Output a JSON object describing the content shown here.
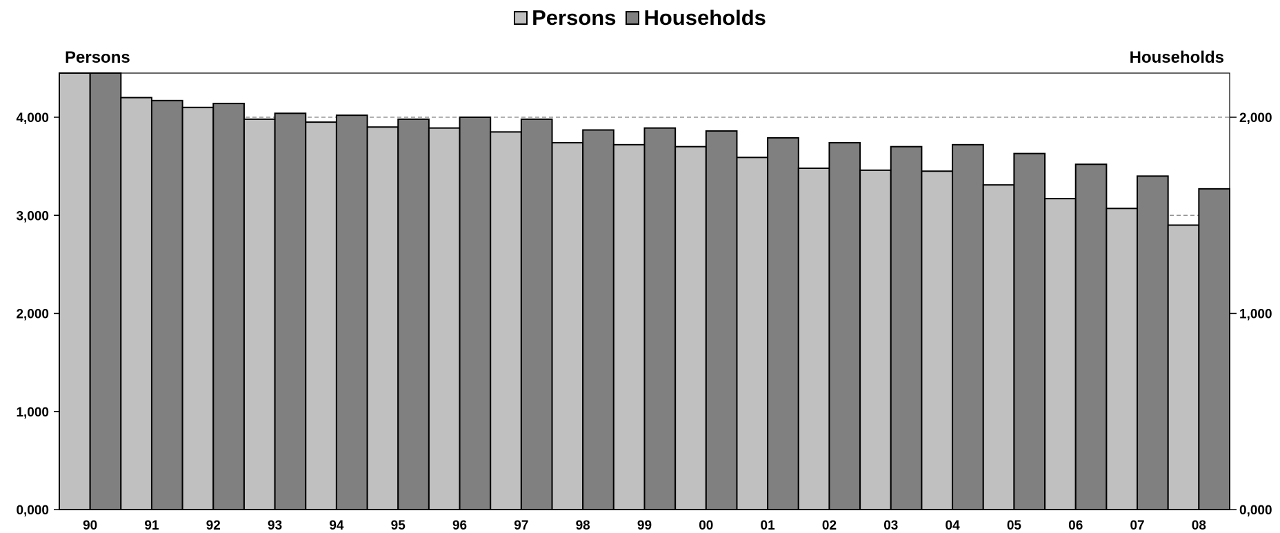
{
  "legend": {
    "persons_label": "Persons",
    "households_label": "Households"
  },
  "chart_data": {
    "type": "bar",
    "title": "",
    "y_left_label": "Persons",
    "y_right_label": "Households",
    "categories": [
      "90",
      "91",
      "92",
      "93",
      "94",
      "95",
      "96",
      "97",
      "98",
      "99",
      "00",
      "01",
      "02",
      "03",
      "04",
      "05",
      "06",
      "07",
      "08"
    ],
    "series": [
      {
        "name": "Persons",
        "axis": "left",
        "color": "#c0c0c0",
        "values": [
          4450,
          4200,
          4100,
          3980,
          3950,
          3900,
          3890,
          3850,
          3740,
          3720,
          3700,
          3590,
          3480,
          3460,
          3450,
          3310,
          3170,
          3070,
          2900
        ]
      },
      {
        "name": "Households",
        "axis": "right",
        "color": "#808080",
        "values": [
          2225,
          2085,
          2070,
          2020,
          2010,
          1990,
          2000,
          1990,
          1935,
          1945,
          1930,
          1895,
          1870,
          1850,
          1860,
          1815,
          1760,
          1700,
          1635
        ]
      }
    ],
    "y_left": {
      "min": 0,
      "max": 4450,
      "ticks": [
        0,
        1000,
        2000,
        3000,
        4000
      ],
      "tick_labels": [
        "0,000",
        "1,000",
        "2,000",
        "3,000",
        "4,000"
      ]
    },
    "y_right": {
      "min": 0,
      "max": 2225,
      "ticks": [
        0,
        1000,
        2000
      ],
      "tick_labels": [
        "0,000",
        "1,000",
        "2,000"
      ]
    },
    "reference_lines": [
      {
        "axis": "left",
        "value": 4000
      },
      {
        "axis": "left",
        "value": 3000
      }
    ]
  }
}
